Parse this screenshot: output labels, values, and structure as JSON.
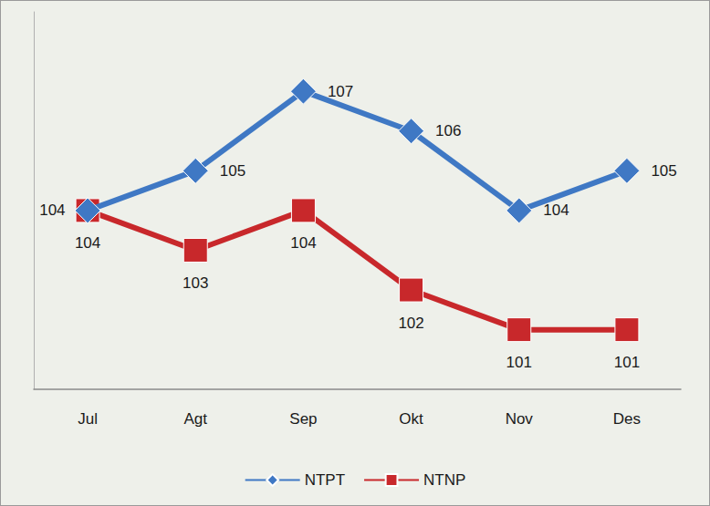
{
  "chart_data": {
    "type": "line",
    "categories": [
      "Jul",
      "Agt",
      "Sep",
      "Okt",
      "Nov",
      "Des"
    ],
    "series": [
      {
        "name": "NTPT",
        "color": "#3f78c4",
        "marker": "diamond",
        "line_style": "solid",
        "values": [
          104,
          105,
          107,
          106,
          104,
          105
        ]
      },
      {
        "name": "NTNP",
        "color": "#c8282b",
        "marker": "square",
        "line_style": "solid",
        "values": [
          104,
          103,
          104,
          102,
          101,
          101
        ]
      }
    ],
    "ylim": [
      99.5,
      109
    ],
    "grid": false,
    "legend": "bottom",
    "data_labels": true,
    "tick_labels": "x"
  }
}
